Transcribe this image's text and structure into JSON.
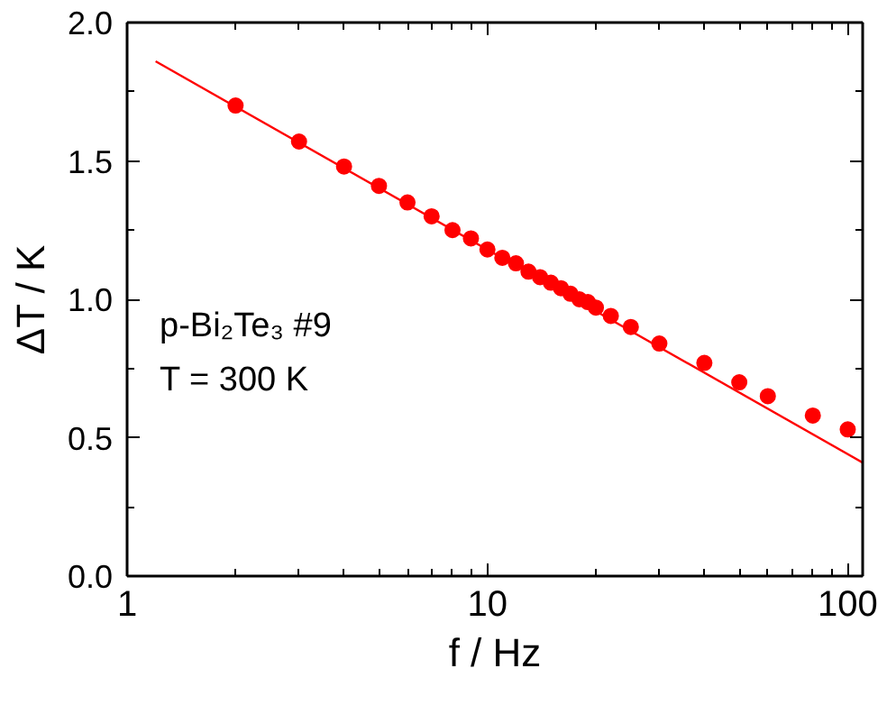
{
  "chart_data": {
    "type": "scatter",
    "xlabel": "f / Hz",
    "ylabel": "ΔT / K",
    "log": "x",
    "xlim": [
      1,
      110
    ],
    "xticks": [
      1,
      10,
      100
    ],
    "ylim": [
      0,
      2.0
    ],
    "yticks": [
      {
        "value": 0,
        "label": "0.0"
      },
      0.5,
      {
        "value": 1,
        "label": "1.0"
      },
      1.5,
      {
        "value": 2,
        "label": "2.0"
      }
    ],
    "grid": false,
    "annotations": [
      "p-Bi₂Te₃ #9",
      "T = 300 K"
    ],
    "series": [
      {
        "marker": "circle",
        "color": "#ff0000",
        "x": [
          2,
          3,
          4,
          5,
          6,
          7,
          8,
          9,
          10,
          11,
          12,
          13,
          14,
          15,
          16,
          17,
          18,
          19,
          20,
          22,
          25,
          30,
          40,
          50,
          60,
          80,
          100
        ],
        "values": [
          1.7,
          1.57,
          1.48,
          1.41,
          1.35,
          1.3,
          1.25,
          1.22,
          1.18,
          1.15,
          1.13,
          1.1,
          1.08,
          1.06,
          1.04,
          1.02,
          1.0,
          0.99,
          0.97,
          0.94,
          0.9,
          0.84,
          0.77,
          0.7,
          0.65,
          0.58,
          0.53
        ]
      },
      {
        "type": "line",
        "line_style": "solid",
        "color": "#ff0000",
        "x": [
          1.2,
          110
        ],
        "values": [
          1.86,
          0.41
        ]
      }
    ]
  }
}
